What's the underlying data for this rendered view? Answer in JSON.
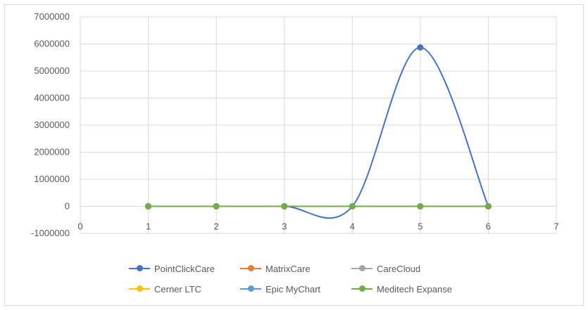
{
  "chart_data": {
    "type": "scatter",
    "title": "",
    "xlabel": "",
    "ylabel": "",
    "xlim": [
      0,
      7
    ],
    "ylim": [
      -1000000,
      7000000
    ],
    "x_ticks": [
      0,
      1,
      2,
      3,
      4,
      5,
      6,
      7
    ],
    "y_ticks": [
      -1000000,
      0,
      1000000,
      2000000,
      3000000,
      4000000,
      5000000,
      6000000,
      7000000
    ],
    "x_tick_labels": [
      "0",
      "1",
      "2",
      "3",
      "4",
      "5",
      "6",
      "7"
    ],
    "y_tick_labels": [
      "-1000000",
      "0",
      "1000000",
      "2000000",
      "3000000",
      "4000000",
      "5000000",
      "6000000",
      "7000000"
    ],
    "grid": true,
    "smoothed_lines": true,
    "legend_position": "bottom",
    "series": [
      {
        "name": "PointClickCare",
        "color": "#4472C4",
        "x": [
          1,
          2,
          3,
          4,
          5,
          6
        ],
        "y": [
          0,
          0,
          0,
          0,
          5870000,
          0
        ]
      },
      {
        "name": "MatrixCare",
        "color": "#ED7D31",
        "x": [
          1,
          2,
          3,
          4,
          5,
          6
        ],
        "y": [
          0,
          0,
          0,
          0,
          0,
          0
        ]
      },
      {
        "name": "CareCloud",
        "color": "#A5A5A5",
        "x": [
          1,
          2,
          3,
          4,
          5,
          6
        ],
        "y": [
          0,
          0,
          0,
          0,
          0,
          0
        ]
      },
      {
        "name": "Cerner LTC",
        "color": "#FFC000",
        "x": [
          1,
          2,
          3,
          4,
          5,
          6
        ],
        "y": [
          0,
          0,
          0,
          0,
          0,
          0
        ]
      },
      {
        "name": "Epic MyChart",
        "color": "#5B9BD5",
        "x": [
          1,
          2,
          3,
          4,
          5,
          6
        ],
        "y": [
          0,
          0,
          0,
          0,
          0,
          0
        ]
      },
      {
        "name": "Meditech Expanse",
        "color": "#70AD47",
        "x": [
          1,
          2,
          3,
          4,
          5,
          6
        ],
        "y": [
          0,
          0,
          0,
          0,
          0,
          0
        ]
      }
    ]
  }
}
